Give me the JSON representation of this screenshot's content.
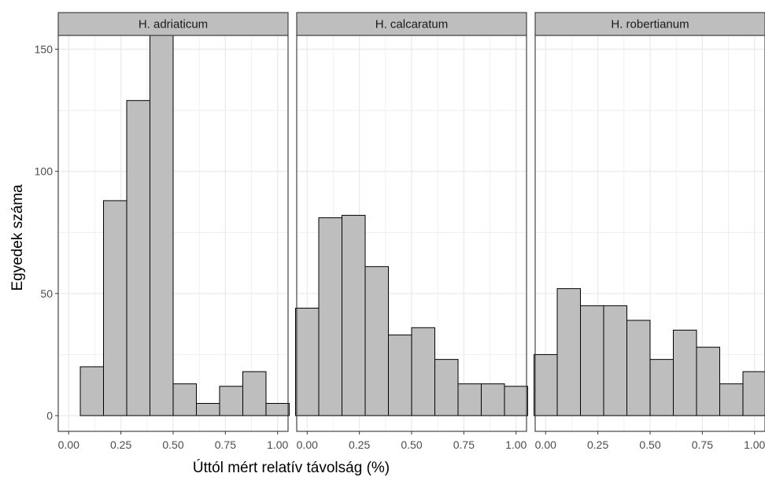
{
  "chart_data": {
    "type": "bar",
    "xlabel": "Úttól mért relatív távolság (%)",
    "ylabel": "Egyedek száma",
    "xlim": [
      -0.05,
      1.05
    ],
    "ylim": [
      0,
      165
    ],
    "xticks": [
      "0.00",
      "0.25",
      "0.50",
      "0.75",
      "1.00"
    ],
    "yticks": [
      "0",
      "50",
      "100",
      "150"
    ],
    "grid": true,
    "panels": [
      {
        "name": "H. adriaticum",
        "bins": [
          0.0,
          0.1111,
          0.2222,
          0.3333,
          0.4444,
          0.5556,
          0.6667,
          0.7778,
          0.8889,
          1.0
        ],
        "values": [
          0,
          20,
          88,
          129,
          156,
          13,
          5,
          12,
          18,
          5
        ]
      },
      {
        "name": "H. calcaratum",
        "bins": [
          0.0,
          0.1111,
          0.2222,
          0.3333,
          0.4444,
          0.5556,
          0.6667,
          0.7778,
          0.8889,
          1.0
        ],
        "values": [
          44,
          81,
          82,
          61,
          33,
          36,
          23,
          13,
          13,
          12
        ]
      },
      {
        "name": "H. robertianum",
        "bins": [
          0.0,
          0.1111,
          0.2222,
          0.3333,
          0.4444,
          0.5556,
          0.6667,
          0.7778,
          0.8889,
          1.0
        ],
        "values": [
          25,
          52,
          45,
          45,
          39,
          23,
          35,
          28,
          13,
          18
        ]
      }
    ],
    "colors": {
      "bar_fill": "#bebebe",
      "bar_stroke": "#000000",
      "strip_fill": "#bebebe",
      "grid": "#ebebeb"
    }
  }
}
